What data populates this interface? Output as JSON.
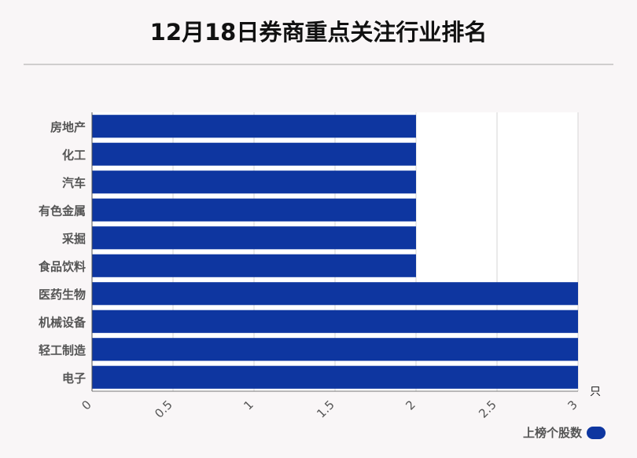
{
  "page": {
    "title": "12月18日券商重点关注行业排名"
  },
  "chart_data": {
    "type": "bar",
    "orientation": "horizontal",
    "categories": [
      "房地产",
      "化工",
      "汽车",
      "有色金属",
      "采掘",
      "食品饮料",
      "医药生物",
      "机械设备",
      "轻工制造",
      "电子"
    ],
    "series": [
      {
        "name": "上榜个股数",
        "values": [
          2,
          2,
          2,
          2,
          2,
          2,
          3,
          3,
          3,
          3
        ]
      }
    ],
    "xlim": [
      0,
      3
    ],
    "xticks": [
      "0",
      "0.5",
      "1",
      "1.5",
      "2",
      "2.5",
      "3"
    ],
    "xunit": "只",
    "grid": true,
    "legend": "bottom-right",
    "bar_color": "#0e36a0"
  }
}
